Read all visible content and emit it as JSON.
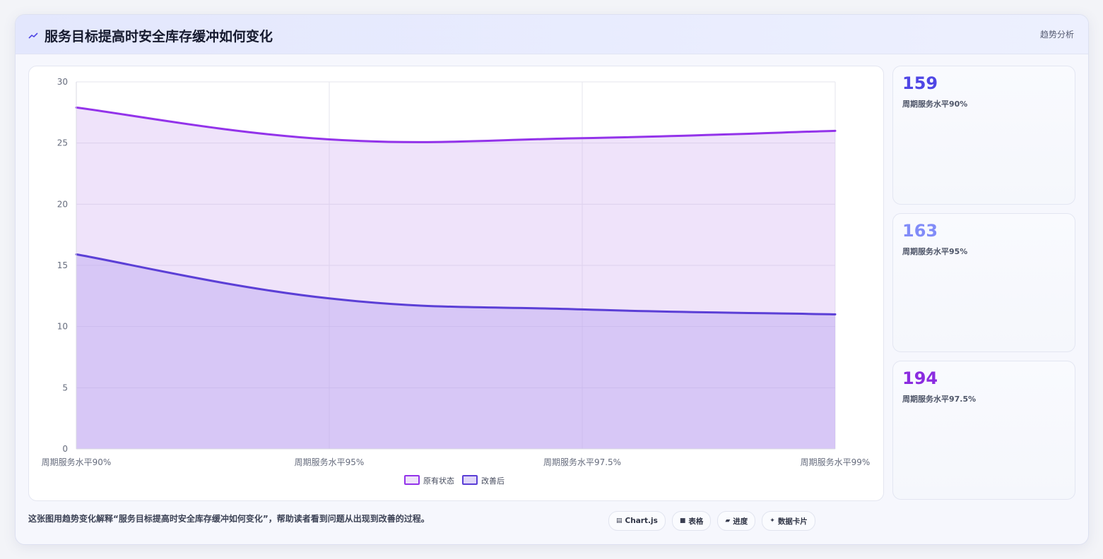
{
  "header": {
    "title": "服务目标提高时安全库存缓冲如何变化",
    "tag": "趋势分析"
  },
  "chart_data": {
    "type": "area",
    "categories": [
      "周期服务水平90%",
      "周期服务水平95%",
      "周期服务水平97.5%",
      "周期服务水平99%"
    ],
    "series": [
      {
        "name": "原有状态",
        "values": [
          27.9,
          25.3,
          25.4,
          26.0
        ],
        "color": "#9333ea",
        "fill": "rgba(196,153,236,0.28)"
      },
      {
        "name": "改善后",
        "values": [
          15.9,
          12.3,
          11.4,
          11.0
        ],
        "color": "#5b3fd6",
        "fill": "rgba(181,159,240,0.42)"
      }
    ],
    "ylim": [
      0,
      30
    ],
    "yticks": [
      0,
      5,
      10,
      15,
      20,
      25,
      30
    ],
    "grid": true,
    "legend": "bottom"
  },
  "stats": [
    {
      "value": "159",
      "label": "周期服务水平90%",
      "color": "#4f46e5"
    },
    {
      "value": "163",
      "label": "周期服务水平95%",
      "color": "#818cf8"
    },
    {
      "value": "194",
      "label": "周期服务水平97.5%",
      "color": "#8b2ce0"
    }
  ],
  "caption": "这张图用趋势变化解释“服务目标提高时安全库存缓冲如何变化”，帮助读者看到问题从出现到改善的过程。",
  "chips": [
    {
      "icon": "▤",
      "label": "Chart.js"
    },
    {
      "icon": "■",
      "label": "表格"
    },
    {
      "icon": "▰",
      "label": "进度"
    },
    {
      "icon": "✦",
      "label": "数据卡片"
    }
  ]
}
